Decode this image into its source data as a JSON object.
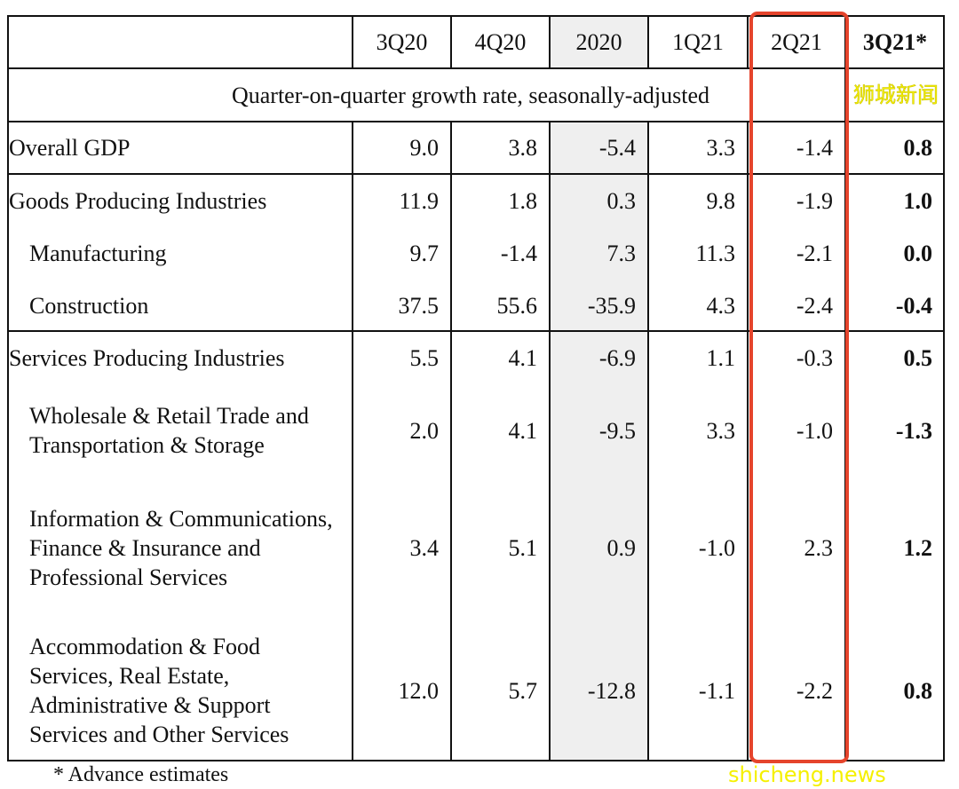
{
  "columns": [
    "3Q20",
    "4Q20",
    "2020",
    "1Q21",
    "2Q21",
    "3Q21*"
  ],
  "subtitle": "Quarter-on-quarter growth rate, seasonally-adjusted",
  "rows": [
    {
      "label": "Overall GDP",
      "values": [
        "9.0",
        "3.8",
        "-5.4",
        "3.3",
        "-1.4",
        "0.8"
      ]
    },
    {
      "label": "Goods Producing Industries",
      "values": [
        "11.9",
        "1.8",
        "0.3",
        "9.8",
        "-1.9",
        "1.0"
      ]
    },
    {
      "label": "Manufacturing",
      "values": [
        "9.7",
        "-1.4",
        "7.3",
        "11.3",
        "-2.1",
        "0.0"
      ]
    },
    {
      "label": "Construction",
      "values": [
        "37.5",
        "55.6",
        "-35.9",
        "4.3",
        "-2.4",
        "-0.4"
      ]
    },
    {
      "label": "Services Producing Industries",
      "values": [
        "5.5",
        "4.1",
        "-6.9",
        "1.1",
        "-0.3",
        "0.5"
      ]
    },
    {
      "label": "Wholesale & Retail Trade and Transportation & Storage",
      "values": [
        "2.0",
        "4.1",
        "-9.5",
        "3.3",
        "-1.0",
        "-1.3"
      ]
    },
    {
      "label": "Information & Communications, Finance & Insurance and Professional Services",
      "values": [
        "3.4",
        "5.1",
        "0.9",
        "-1.0",
        "2.3",
        "1.2"
      ]
    },
    {
      "label": "Accommodation & Food Services, Real Estate, Administrative & Support Services and Other Services",
      "values": [
        "12.0",
        "5.7",
        "-12.8",
        "-1.1",
        "-2.2",
        "0.8"
      ]
    }
  ],
  "footnote": "* Advance estimates",
  "highlight_color": "#e5442c",
  "watermarks": [
    "狮城新闻",
    "shicheng.news"
  ]
}
